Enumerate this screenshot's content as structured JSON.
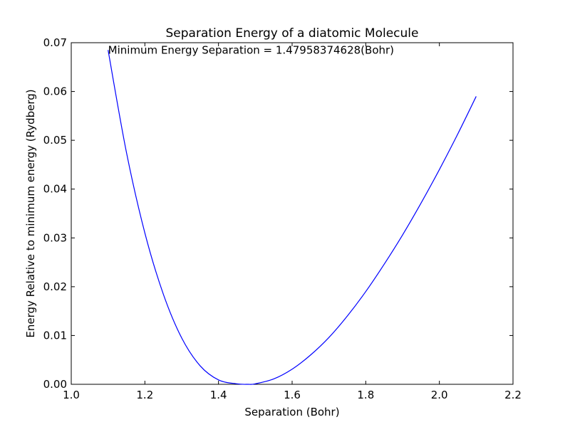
{
  "chart_data": {
    "type": "line",
    "title": "Separation Energy of a diatomic Molecule",
    "xlabel": "Separation (Bohr)",
    "ylabel": "Energy Relative to minimum energy (Rydberg)",
    "xlim": [
      1.0,
      2.2
    ],
    "ylim": [
      0.0,
      0.07
    ],
    "xticks": [
      1.0,
      1.2,
      1.4,
      1.6,
      1.8,
      2.0,
      2.2
    ],
    "xtick_labels": [
      "1.0",
      "1.2",
      "1.4",
      "1.6",
      "1.8",
      "2.0",
      "2.2"
    ],
    "yticks": [
      0.0,
      0.01,
      0.02,
      0.03,
      0.04,
      0.05,
      0.06,
      0.07
    ],
    "ytick_labels": [
      "0.00",
      "0.01",
      "0.02",
      "0.03",
      "0.04",
      "0.05",
      "0.06",
      "0.07"
    ],
    "grid": false,
    "annotation": {
      "text": "Minimum Energy Separation = 1.47958374628(Bohr)",
      "x": 1.1,
      "y": 0.0685
    },
    "series": [
      {
        "color": "#0000ff",
        "x": [
          1.1,
          1.15,
          1.2,
          1.25,
          1.3,
          1.35,
          1.4,
          1.45,
          1.48,
          1.5,
          1.55,
          1.6,
          1.65,
          1.7,
          1.75,
          1.8,
          1.85,
          1.9,
          1.95,
          2.0,
          2.05,
          2.1
        ],
        "y": [
          0.0685,
          0.0475,
          0.031,
          0.0185,
          0.0095,
          0.0038,
          0.0009,
          0.0001,
          0.0,
          0.0001,
          0.0011,
          0.0031,
          0.006,
          0.0096,
          0.014,
          0.019,
          0.0246,
          0.0306,
          0.0371,
          0.044,
          0.0513,
          0.059
        ]
      }
    ]
  }
}
